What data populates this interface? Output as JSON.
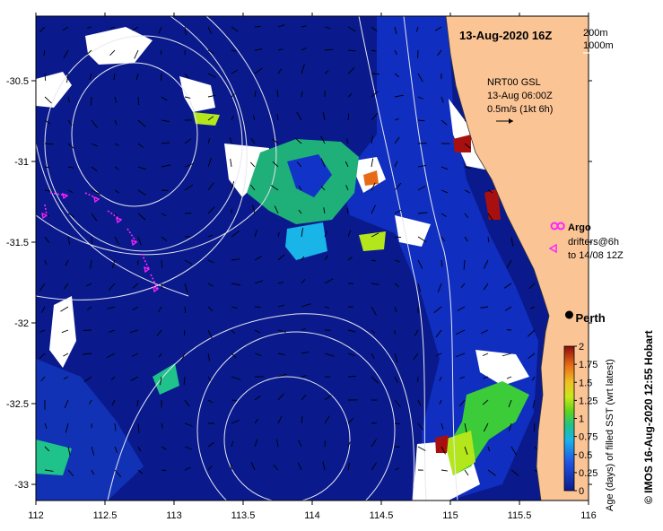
{
  "map": {
    "date_title": "13-Aug-2020 16Z",
    "depth_legend": [
      "200m",
      "1000m"
    ],
    "current_note": [
      "NRT00 GSL",
      "13-Aug 06:00Z",
      "0.5m/s (1kt 6h)"
    ],
    "argo_label": "Argo",
    "drifters_label": [
      "drifters@6h",
      "to 14/08 12Z"
    ],
    "city_label": "Perth",
    "credit": "© IMOS 16-Aug-2020 12:55 Hobart",
    "lon_ticks": [
      "112",
      "112.5",
      "113",
      "113.5",
      "114",
      "114.5",
      "115",
      "115.5",
      "116"
    ],
    "lat_ticks": [
      "-30.5",
      "-31",
      "-31.5",
      "-32",
      "-32.5",
      "-33"
    ],
    "lon_range": [
      112,
      116
    ],
    "lat_range": [
      -33.1,
      -30.1
    ]
  },
  "colorbar": {
    "title": "Age (days) of filled SST (wrt latest)",
    "ticks": [
      "2",
      "1.75",
      "1.5",
      "1.25",
      "1",
      "0.75",
      "0.5",
      "0.25",
      "0"
    ],
    "range": [
      0,
      2
    ]
  },
  "colors": {
    "ocean": "#0a1a8c",
    "land": "#fbc495",
    "cloud": "#ffffff",
    "contour": "#e6e6f2",
    "argo": "#ff22ff",
    "drifter": "#ff22ff"
  },
  "patches": [
    {
      "kind": "cloud",
      "lon": 112.5,
      "lat": -30.55
    },
    {
      "kind": "cloud",
      "lon": 113.2,
      "lat": -30.75
    },
    {
      "kind": "cloud",
      "lon": 113.6,
      "lat": -31.0
    },
    {
      "kind": "green",
      "lon": 113.95,
      "lat": -31.15
    },
    {
      "kind": "cyan",
      "lon": 113.95,
      "lat": -31.45
    },
    {
      "kind": "blue",
      "lon": 114.6,
      "lat": -30.35
    },
    {
      "kind": "blue",
      "lon": 114.9,
      "lat": -31.2
    },
    {
      "kind": "green",
      "lon": 115.4,
      "lat": -32.5
    },
    {
      "kind": "cloud",
      "lon": 112.3,
      "lat": -32.05
    },
    {
      "kind": "blue",
      "lon": 112.9,
      "lat": -32.8
    },
    {
      "kind": "cloud",
      "lon": 115.35,
      "lat": -33.0
    }
  ],
  "argo": {
    "lon": 115.8,
    "lat": -31.4
  },
  "perth": {
    "lon": 115.86,
    "lat": -31.95
  }
}
